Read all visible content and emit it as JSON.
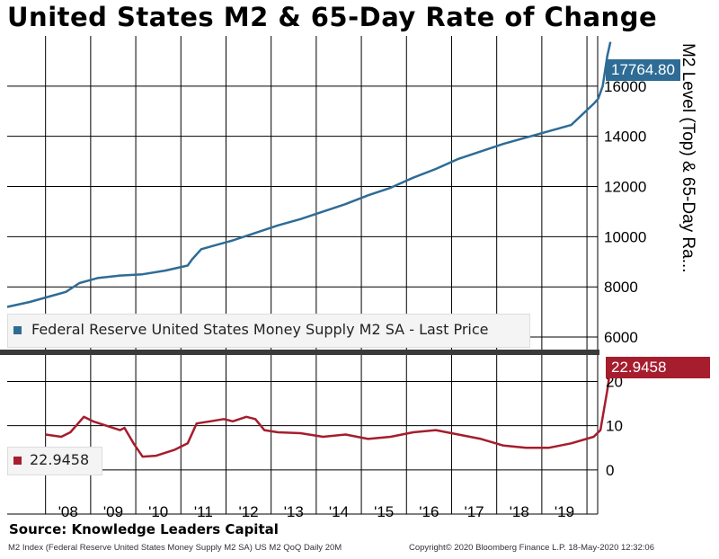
{
  "title": "United States M2 & 65-Day Rate of Change",
  "y_axis_label": "M2 Level (Top) & 65-Day Ra...",
  "source": "Source: Knowledge Leaders Capital",
  "footer_left": "M2 Index (Federal Reserve United States Money Supply M2 SA) US M2 QoQ  Daily 20M",
  "footer_right": "Copyright© 2020 Bloomberg Finance L.P.          18-May-2020 12:32:06",
  "colors": {
    "m2": "#2e6c96",
    "roc": "#a61d2d",
    "divider": "#3a3a3a"
  },
  "chart_data": [
    {
      "type": "line",
      "title": "United States M2 & 65-Day Rate of Change",
      "ylabel": "M2 Level (Top) & 65-Day Ra...",
      "x_tick_labels": [
        "'08",
        "'09",
        "'10",
        "'11",
        "'12",
        "'13",
        "'14",
        "'15",
        "'16",
        "'17",
        "'18",
        "'19"
      ],
      "ylim": [
        5500,
        18000
      ],
      "y_ticks": [
        6000,
        8000,
        10000,
        12000,
        14000,
        16000
      ],
      "grid": true,
      "legend": "Federal Reserve United States Money Supply M2 SA - Last Price",
      "legend_position": "bottom-left",
      "last_value": "17764.80",
      "series": [
        {
          "name": "Federal Reserve United States Money Supply M2 SA - Last Price",
          "x": [
            2007.0,
            2007.5,
            2008.0,
            2008.3,
            2008.6,
            2009.0,
            2009.5,
            2010.0,
            2010.5,
            2011.0,
            2011.1,
            2011.3,
            2011.6,
            2012.0,
            2012.5,
            2013.0,
            2013.5,
            2014.0,
            2014.5,
            2015.0,
            2015.5,
            2016.0,
            2016.5,
            2017.0,
            2017.5,
            2018.0,
            2018.5,
            2019.0,
            2019.5,
            2020.0,
            2020.1,
            2020.2,
            2020.3,
            2020.37
          ],
          "values": [
            7200,
            7400,
            7650,
            7800,
            8150,
            8350,
            8450,
            8500,
            8650,
            8850,
            9100,
            9500,
            9650,
            9850,
            10150,
            10450,
            10700,
            11000,
            11300,
            11650,
            11950,
            12350,
            12700,
            13100,
            13400,
            13700,
            13950,
            14200,
            14450,
            15300,
            15500,
            16000,
            17200,
            17764.8
          ]
        }
      ]
    },
    {
      "type": "line",
      "ylim": [
        -10,
        26
      ],
      "y_ticks": [
        0,
        10,
        20
      ],
      "grid": true,
      "legend": "22.9458",
      "legend_position": "bottom-left",
      "last_value": "22.9458",
      "series": [
        {
          "name": "22.9458",
          "x": [
            2007.85,
            2008.2,
            2008.4,
            2008.7,
            2008.9,
            2009.2,
            2009.5,
            2009.6,
            2009.8,
            2010.0,
            2010.3,
            2010.7,
            2011.0,
            2011.2,
            2011.5,
            2011.8,
            2012.0,
            2012.3,
            2012.5,
            2012.7,
            2013.0,
            2013.5,
            2014.0,
            2014.5,
            2015.0,
            2015.5,
            2016.0,
            2016.5,
            2017.0,
            2017.5,
            2018.0,
            2018.5,
            2019.0,
            2019.5,
            2020.0,
            2020.15,
            2020.3,
            2020.37
          ],
          "values": [
            8,
            7.5,
            8.5,
            12,
            11,
            10,
            9,
            9.5,
            6,
            3,
            3.2,
            4.5,
            6,
            10.5,
            11,
            11.5,
            11,
            12,
            11.5,
            9,
            8.5,
            8.3,
            7.5,
            8,
            7,
            7.5,
            8.5,
            9,
            8,
            7,
            5.5,
            5,
            5,
            6,
            7.5,
            9,
            18,
            22.9458
          ]
        }
      ]
    }
  ]
}
